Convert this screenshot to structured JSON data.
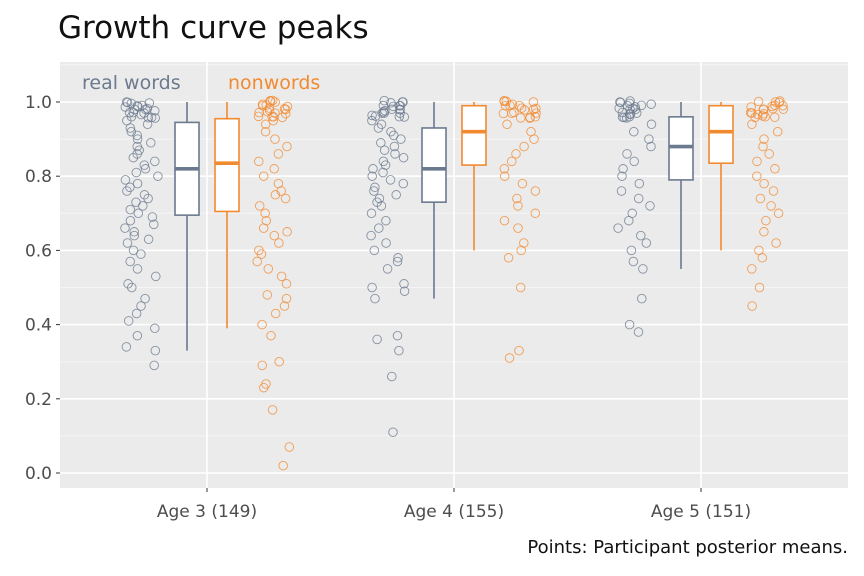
{
  "title": "Growth curve peaks",
  "caption": "Points: Participant posterior means.",
  "chart_data": {
    "type": "boxplot",
    "ylim": [
      0,
      1.1
    ],
    "yticks": [
      "0.0",
      "0.2",
      "0.4",
      "0.6",
      "0.8",
      "1.0"
    ],
    "categories": [
      "Age 3 (149)",
      "Age 4 (155)",
      "Age 5 (151)"
    ],
    "grid": true,
    "series": [
      {
        "name": "real words",
        "color": "#6b7a8f",
        "boxes": [
          {
            "min": 0.33,
            "q1": 0.695,
            "median": 0.82,
            "q3": 0.945,
            "max": 1.0
          },
          {
            "min": 0.47,
            "q1": 0.73,
            "median": 0.82,
            "q3": 0.93,
            "max": 1.0
          },
          {
            "min": 0.55,
            "q1": 0.79,
            "median": 0.88,
            "q3": 0.96,
            "max": 1.0
          }
        ],
        "outliers": [
          [],
          [],
          []
        ],
        "points": [
          [
            0.29,
            0.33,
            0.34,
            0.37,
            0.39,
            0.41,
            0.43,
            0.45,
            0.47,
            0.5,
            0.51,
            0.53,
            0.55,
            0.57,
            0.59,
            0.6,
            0.62,
            0.63,
            0.64,
            0.65,
            0.66,
            0.67,
            0.68,
            0.69,
            0.7,
            0.71,
            0.72,
            0.73,
            0.74,
            0.75,
            0.76,
            0.77,
            0.78,
            0.79,
            0.8,
            0.81,
            0.82,
            0.83,
            0.84,
            0.85,
            0.86,
            0.87,
            0.88,
            0.89,
            0.9,
            0.91,
            0.92,
            0.93,
            0.94,
            0.95,
            0.96,
            0.97,
            0.98,
            0.99,
            1.0
          ],
          [
            0.11,
            0.26,
            0.33,
            0.36,
            0.37,
            0.47,
            0.49,
            0.5,
            0.51,
            0.55,
            0.57,
            0.58,
            0.6,
            0.62,
            0.64,
            0.66,
            0.68,
            0.7,
            0.72,
            0.73,
            0.74,
            0.75,
            0.76,
            0.77,
            0.78,
            0.79,
            0.8,
            0.81,
            0.82,
            0.83,
            0.84,
            0.85,
            0.86,
            0.87,
            0.88,
            0.89,
            0.9,
            0.91,
            0.92,
            0.93,
            0.94,
            0.95,
            0.96,
            0.97,
            0.98,
            0.99,
            1.0
          ],
          [
            0.38,
            0.4,
            0.47,
            0.55,
            0.57,
            0.6,
            0.62,
            0.64,
            0.66,
            0.68,
            0.7,
            0.72,
            0.74,
            0.76,
            0.78,
            0.8,
            0.82,
            0.84,
            0.86,
            0.88,
            0.9,
            0.92,
            0.94,
            0.96,
            0.97,
            0.98,
            0.99,
            1.0
          ]
        ]
      },
      {
        "name": "nonwords",
        "color": "#f28a30",
        "boxes": [
          {
            "min": 0.39,
            "q1": 0.705,
            "median": 0.835,
            "q3": 0.955,
            "max": 1.0
          },
          {
            "min": 0.6,
            "q1": 0.83,
            "median": 0.92,
            "q3": 0.99,
            "max": 1.0
          },
          {
            "min": 0.6,
            "q1": 0.835,
            "median": 0.92,
            "q3": 0.99,
            "max": 1.0
          }
        ],
        "outliers": [
          [
            0.02
          ],
          [
            0.31,
            0.33
          ],
          [
            0.45
          ]
        ],
        "points": [
          [
            0.02,
            0.07,
            0.17,
            0.23,
            0.24,
            0.29,
            0.3,
            0.37,
            0.4,
            0.43,
            0.45,
            0.47,
            0.48,
            0.51,
            0.53,
            0.55,
            0.57,
            0.59,
            0.6,
            0.62,
            0.64,
            0.65,
            0.66,
            0.68,
            0.7,
            0.72,
            0.74,
            0.75,
            0.76,
            0.78,
            0.8,
            0.82,
            0.84,
            0.86,
            0.88,
            0.9,
            0.92,
            0.94,
            0.95,
            0.96,
            0.97,
            0.98,
            0.99,
            1.0
          ],
          [
            0.31,
            0.33,
            0.5,
            0.58,
            0.6,
            0.62,
            0.66,
            0.68,
            0.7,
            0.72,
            0.74,
            0.76,
            0.78,
            0.8,
            0.82,
            0.84,
            0.86,
            0.88,
            0.9,
            0.92,
            0.94,
            0.96,
            0.97,
            0.98,
            0.99,
            1.0
          ],
          [
            0.45,
            0.5,
            0.55,
            0.58,
            0.6,
            0.62,
            0.65,
            0.68,
            0.7,
            0.72,
            0.74,
            0.76,
            0.78,
            0.8,
            0.82,
            0.84,
            0.86,
            0.88,
            0.9,
            0.92,
            0.94,
            0.96,
            0.97,
            0.98,
            0.99,
            1.0
          ]
        ]
      }
    ]
  }
}
